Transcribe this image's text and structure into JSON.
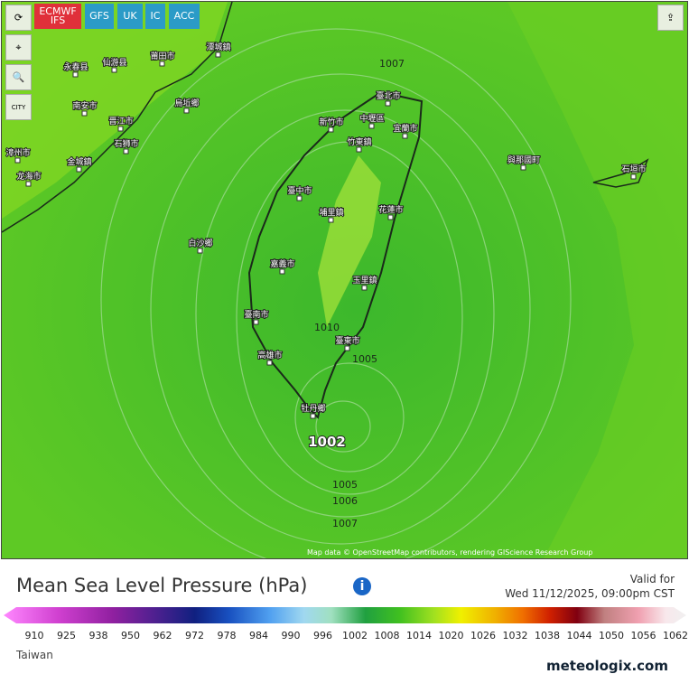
{
  "toolbar": {
    "models": [
      "ECMWF IFS",
      "GFS",
      "UK",
      "IC",
      "ACC"
    ],
    "city": "CITY"
  },
  "map": {
    "cities": [
      "潭城鎮",
      "永春县",
      "仙游县",
      "莆田市",
      "南安市",
      "晋江市",
      "石狮市",
      "烏坵鄉",
      "漳州市",
      "龙海市",
      "金城鎮",
      "臺北市",
      "新竹市",
      "中壢區",
      "竹東鎮",
      "宜蘭市",
      "與那國町",
      "石垣市",
      "臺中市",
      "埔里鎮",
      "花蓮市",
      "白沙鄉",
      "嘉義市",
      "玉里鎮",
      "臺南市",
      "臺東市",
      "高雄市",
      "牡丹鄉"
    ],
    "isobars": [
      "1007",
      "1010",
      "1005",
      "1002",
      "1005",
      "1006",
      "1007"
    ],
    "attribution": "Map data © OpenStreetMap contributors, rendering GIScience Research Group"
  },
  "legend": {
    "title": "Mean Sea Level Pressure (hPa)",
    "valid_label": "Valid for",
    "valid_time": "Wed 11/12/2025, 09:00pm CST",
    "ticks": [
      "910",
      "925",
      "938",
      "950",
      "962",
      "972",
      "978",
      "984",
      "990",
      "996",
      "1002",
      "1008",
      "1014",
      "1020",
      "1026",
      "1032",
      "1038",
      "1044",
      "1050",
      "1056",
      "1062"
    ],
    "region": "Taiwan",
    "brand": "meteologix.com"
  }
}
